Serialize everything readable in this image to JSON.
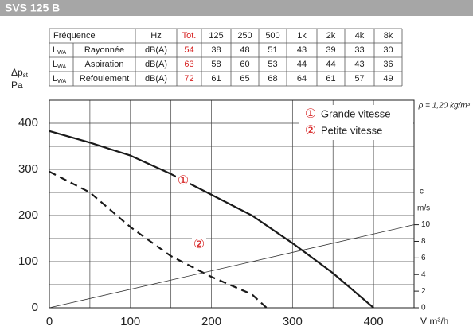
{
  "header": {
    "title": "SVS 125 B"
  },
  "table": {
    "header": [
      "Fréquence",
      "Hz",
      "Tot.",
      125,
      250,
      500,
      "1k",
      "2k",
      "4k",
      "8k"
    ],
    "rows": [
      {
        "symbol": "L",
        "subscript": "WA",
        "label": "Rayonnée",
        "unit": "dB(A)",
        "values": [
          54,
          38,
          48,
          51,
          43,
          39,
          33,
          30
        ]
      },
      {
        "symbol": "L",
        "subscript": "WA",
        "label": "Aspiration",
        "unit": "dB(A)",
        "values": [
          63,
          58,
          60,
          53,
          44,
          44,
          43,
          36
        ]
      },
      {
        "symbol": "L",
        "subscript": "WA",
        "label": "Refoulement",
        "unit": "dB(A)",
        "values": [
          72,
          61,
          65,
          68,
          64,
          61,
          57,
          49
        ]
      }
    ]
  },
  "chart_data": {
    "type": "line",
    "y_label": {
      "symbol": "Δp",
      "subscript": "st",
      "unit": "Pa"
    },
    "x_label": "V̇ m³/h",
    "y2_label": {
      "symbol": "c",
      "unit": "m/s"
    },
    "note": "ρ = 1,20 kg/m³",
    "xlim": [
      0,
      450
    ],
    "ylim": [
      0,
      450
    ],
    "y2lim": [
      0,
      25
    ],
    "xticks": [
      0,
      100,
      200,
      300,
      400
    ],
    "yticks": [
      0,
      100,
      200,
      300,
      400
    ],
    "y2ticks": [
      0,
      2,
      4,
      6,
      8,
      10
    ],
    "xgrid": [
      0,
      50,
      100,
      150,
      200,
      250,
      300,
      350,
      400,
      450
    ],
    "ygrid": [
      0,
      50,
      100,
      150,
      200,
      250,
      300,
      350,
      400,
      450
    ],
    "series": [
      {
        "name": "Grande vitesse",
        "marker": "①",
        "color": "#1a1a1a",
        "dashed": false,
        "x": [
          0,
          50,
          100,
          150,
          200,
          250,
          300,
          350,
          400
        ],
        "values": [
          383,
          358,
          330,
          290,
          245,
          200,
          140,
          75,
          0
        ]
      },
      {
        "name": "Petite vitesse",
        "marker": "②",
        "color": "#1a1a1a",
        "dashed": true,
        "x": [
          0,
          50,
          100,
          150,
          200,
          250,
          268
        ],
        "values": [
          295,
          250,
          175,
          112,
          67,
          29,
          0
        ]
      },
      {
        "axis": "y2",
        "color": "#333",
        "dashed": false,
        "thin": true,
        "x": [
          0,
          450
        ],
        "values": [
          0,
          10
        ]
      }
    ]
  }
}
